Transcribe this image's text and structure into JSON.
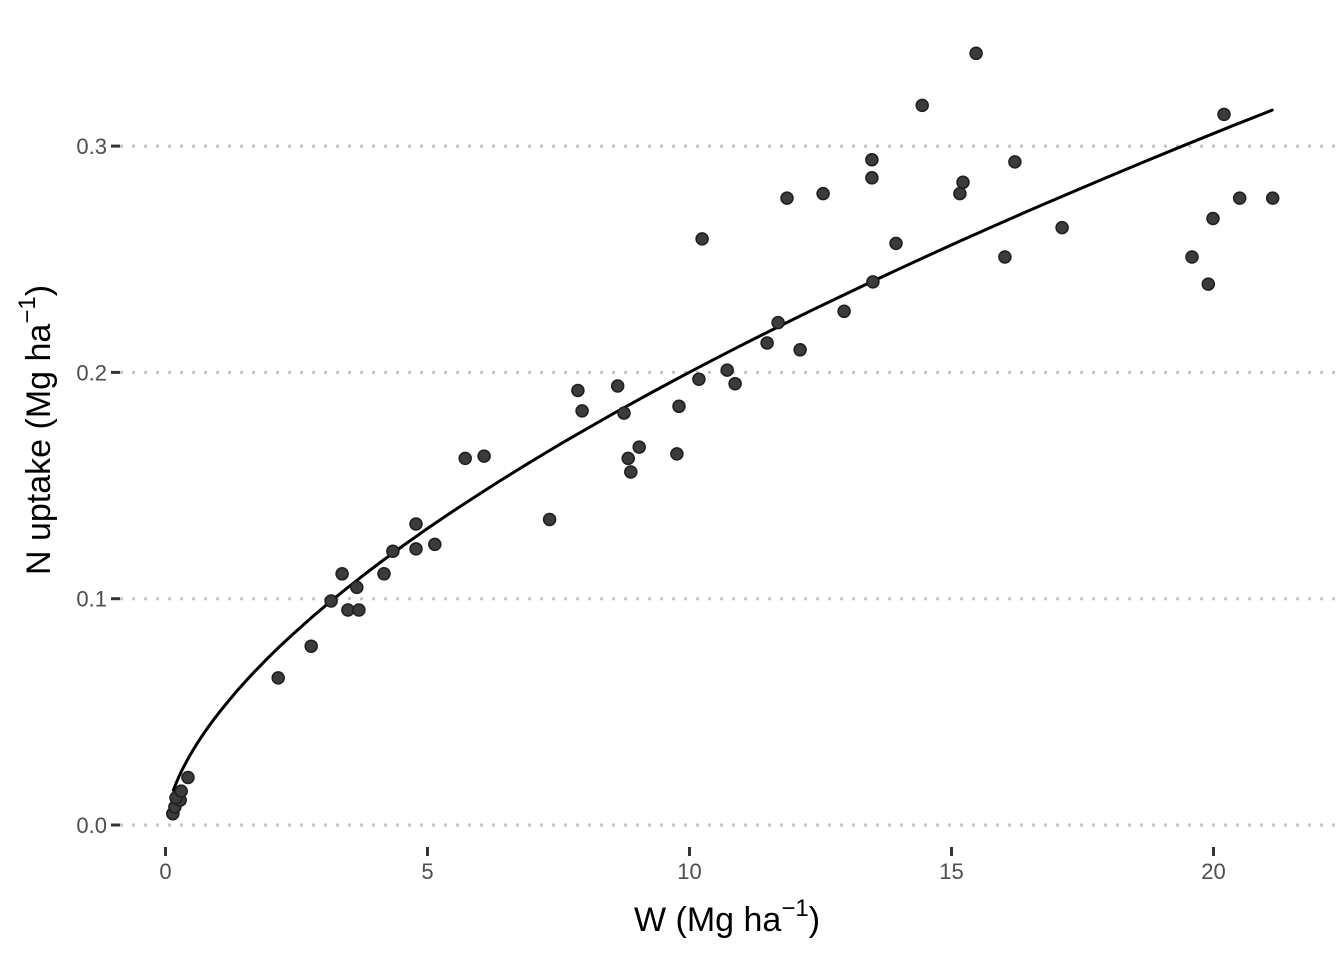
{
  "chart_data": {
    "type": "scatter",
    "title": "",
    "xlabel": {
      "pre": "W (Mg ha",
      "sup": "−1",
      "post": ")",
      "display": "W (Mg ha^-1)"
    },
    "ylabel": {
      "pre": "N uptake (Mg ha",
      "sup": "−1",
      "post": ")",
      "display": "N uptake (Mg ha^-1)"
    },
    "x_tick_values": [
      0,
      5,
      10,
      15,
      20
    ],
    "x_tick_labels": [
      "0",
      "5",
      "10",
      "15",
      "20"
    ],
    "y_tick_values": [
      0.0,
      0.1,
      0.2,
      0.3
    ],
    "y_tick_labels": [
      "0.0",
      "0.1",
      "0.2",
      "0.3"
    ],
    "xlim": [
      -0.9,
      22.4
    ],
    "ylim": [
      -0.012,
      0.358
    ],
    "grid": "horizontal-dotted-major-only",
    "legend_position": "none",
    "points": [
      [
        0.14,
        0.005
      ],
      [
        0.18,
        0.008
      ],
      [
        0.28,
        0.011
      ],
      [
        0.2,
        0.012
      ],
      [
        0.3,
        0.015
      ],
      [
        0.43,
        0.021
      ],
      [
        2.15,
        0.065
      ],
      [
        2.78,
        0.079
      ],
      [
        3.16,
        0.099
      ],
      [
        3.37,
        0.111
      ],
      [
        3.48,
        0.095
      ],
      [
        3.69,
        0.095
      ],
      [
        3.65,
        0.105
      ],
      [
        4.17,
        0.111
      ],
      [
        4.34,
        0.121
      ],
      [
        4.78,
        0.122
      ],
      [
        4.78,
        0.133
      ],
      [
        5.14,
        0.124
      ],
      [
        5.72,
        0.162
      ],
      [
        6.08,
        0.163
      ],
      [
        7.33,
        0.135
      ],
      [
        7.87,
        0.192
      ],
      [
        7.95,
        0.183
      ],
      [
        8.63,
        0.194
      ],
      [
        8.75,
        0.182
      ],
      [
        8.83,
        0.162
      ],
      [
        8.88,
        0.156
      ],
      [
        9.04,
        0.167
      ],
      [
        9.8,
        0.185
      ],
      [
        9.76,
        0.164
      ],
      [
        10.18,
        0.197
      ],
      [
        10.24,
        0.259
      ],
      [
        10.72,
        0.201
      ],
      [
        10.87,
        0.195
      ],
      [
        11.48,
        0.213
      ],
      [
        11.69,
        0.222
      ],
      [
        11.86,
        0.277
      ],
      [
        12.11,
        0.21
      ],
      [
        12.55,
        0.279
      ],
      [
        12.95,
        0.227
      ],
      [
        13.48,
        0.294
      ],
      [
        13.48,
        0.286
      ],
      [
        13.5,
        0.24
      ],
      [
        13.94,
        0.257
      ],
      [
        14.44,
        0.318
      ],
      [
        15.47,
        0.341
      ],
      [
        15.16,
        0.279
      ],
      [
        15.22,
        0.284
      ],
      [
        16.21,
        0.293
      ],
      [
        16.02,
        0.251
      ],
      [
        17.11,
        0.264
      ],
      [
        19.59,
        0.251
      ],
      [
        19.9,
        0.239
      ],
      [
        19.99,
        0.268
      ],
      [
        20.2,
        0.314
      ],
      [
        20.5,
        0.277
      ],
      [
        21.13,
        0.277
      ]
    ],
    "fit_curve": {
      "model": "power",
      "equation": "y = 0.049 * x^0.611",
      "a": 0.049,
      "b": 0.611,
      "x_start": 0.15,
      "x_end": 21.12
    }
  },
  "colors": {
    "background": "#ffffff",
    "point_fill": "#3b3b3b",
    "point_stroke": "#1e1e1e",
    "curve": "#000000",
    "gridline": "#c4c4c4",
    "tick_mark": "#333333",
    "tick_label": "#4d4d4d",
    "axis_title": "#000000"
  }
}
